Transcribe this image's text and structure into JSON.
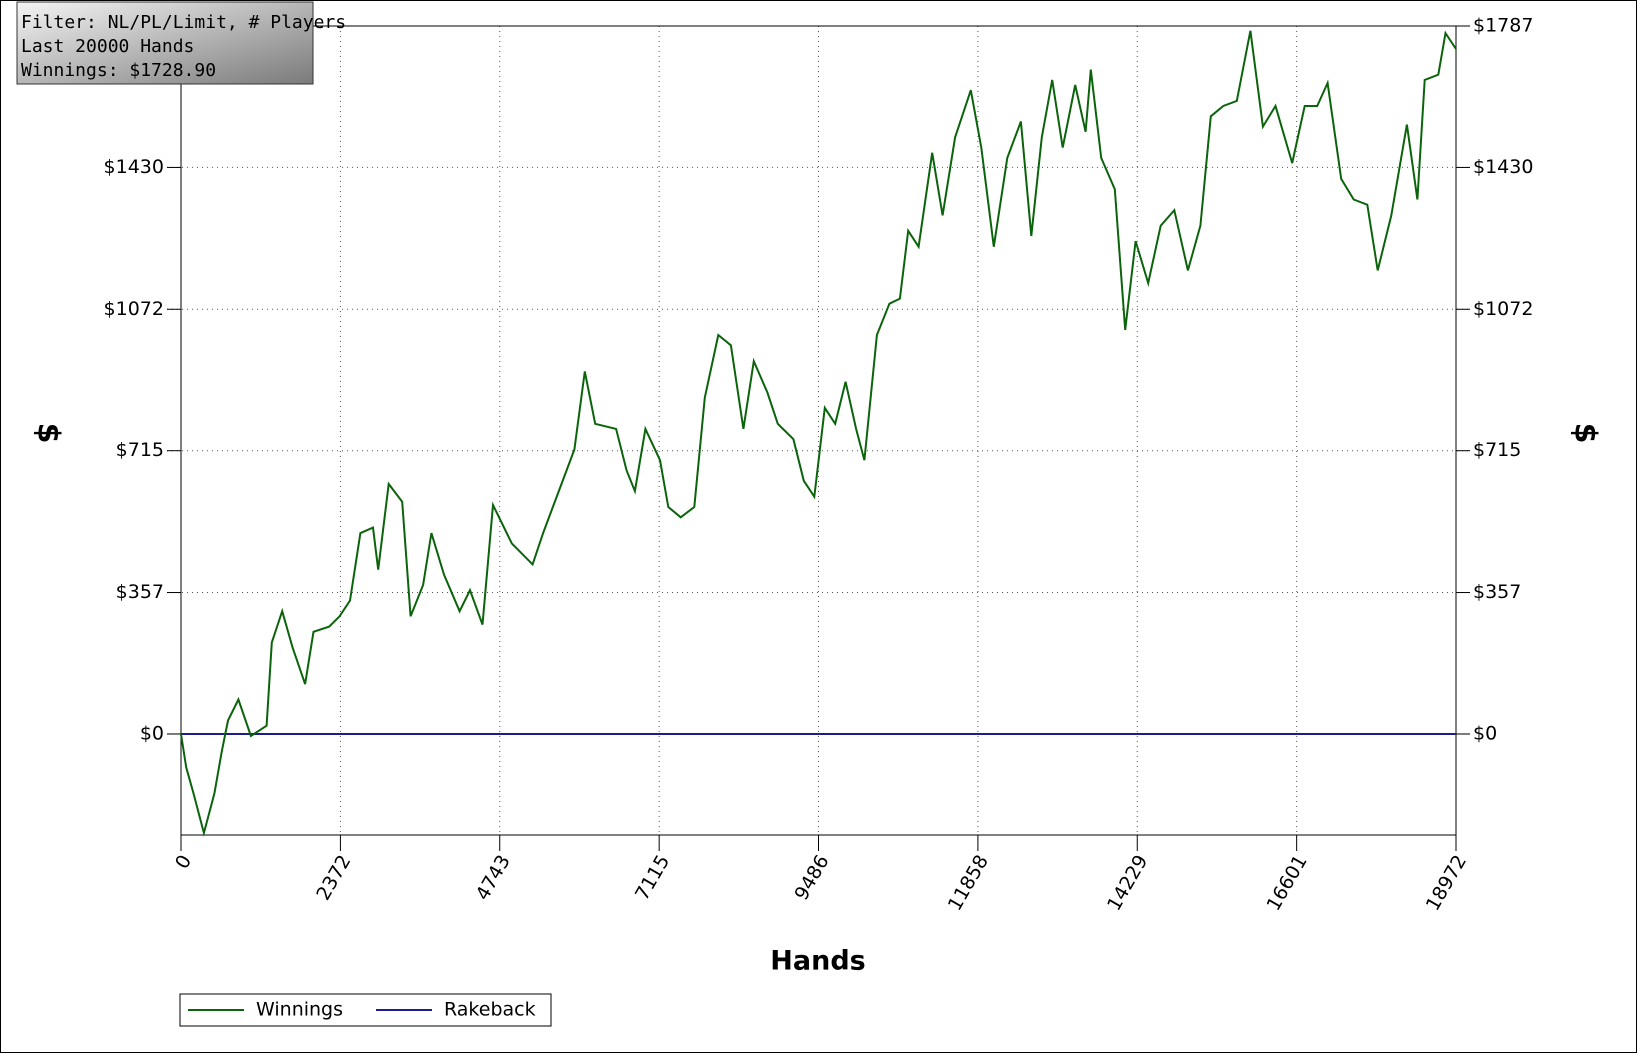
{
  "info_box": {
    "lines": [
      "Filter: NL/PL/Limit, # Players",
      "Last 20000 Hands",
      "Winnings: $1728.90"
    ]
  },
  "chart_data": {
    "type": "line",
    "xlabel": "Hands",
    "ylabel": "$",
    "xlim": [
      0,
      18972
    ],
    "xticks": [
      0,
      2372,
      4743,
      7115,
      9486,
      11858,
      14229,
      16601,
      18972
    ],
    "ylim": [
      -255,
      1787
    ],
    "yticks": [
      {
        "value": 0,
        "label": "$0"
      },
      {
        "value": 357,
        "label": "$357"
      },
      {
        "value": 715,
        "label": "$715"
      },
      {
        "value": 1072,
        "label": "$1072"
      },
      {
        "value": 1430,
        "label": "$1430"
      },
      {
        "value": 1787,
        "label": "$1787"
      }
    ],
    "grid": true,
    "legend": "bottom-left",
    "series": [
      {
        "name": "Winnings",
        "color": "#0b640b",
        "x": [
          0,
          78,
          186,
          341,
          497,
          605,
          699,
          854,
          1040,
          1273,
          1351,
          1506,
          1661,
          1847,
          1972,
          2205,
          2360,
          2515,
          2670,
          2857,
          2934,
          3090,
          3291,
          3416,
          3602,
          3726,
          3913,
          4146,
          4301,
          4487,
          4643,
          4922,
          5232,
          5388,
          5621,
          5854,
          6009,
          6164,
          6475,
          6630,
          6754,
          6910,
          7127,
          7251,
          7436,
          7638,
          7794,
          7995,
          8182,
          8368,
          8523,
          8725,
          8880,
          9113,
          9268,
          9424,
          9579,
          9734,
          9889,
          10045,
          10169,
          10355,
          10541,
          10697,
          10821,
          10976,
          11178,
          11333,
          11519,
          11752,
          11908,
          12094,
          12296,
          12498,
          12653,
          12808,
          12963,
          13119,
          13305,
          13460,
          13538,
          13693,
          13895,
          14050,
          14205,
          14392,
          14578,
          14780,
          14982,
          15168,
          15323,
          15509,
          15711,
          15913,
          16099,
          16286,
          16534,
          16720,
          16907,
          17062,
          17264,
          17450,
          17652,
          17807,
          18009,
          18242,
          18397,
          18506,
          18708,
          18816,
          18972
        ],
        "values": [
          0,
          -84,
          -150,
          -250,
          -150,
          -45,
          34,
          87,
          -5,
          21,
          231,
          310,
          218,
          126,
          258,
          271,
          297,
          337,
          507,
          521,
          415,
          631,
          586,
          297,
          376,
          507,
          402,
          310,
          363,
          276,
          578,
          481,
          428,
          507,
          613,
          718,
          915,
          783,
          770,
          665,
          613,
          770,
          691,
          573,
          547,
          573,
          849,
          1007,
          981,
          770,
          941,
          862,
          783,
          744,
          639,
          599,
          823,
          783,
          889,
          770,
          691,
          1007,
          1086,
          1099,
          1270,
          1230,
          1467,
          1309,
          1506,
          1625,
          1480,
          1230,
          1454,
          1546,
          1257,
          1506,
          1651,
          1480,
          1638,
          1520,
          1677,
          1454,
          1375,
          1020,
          1244,
          1138,
          1283,
          1322,
          1170,
          1283,
          1559,
          1585,
          1598,
          1775,
          1533,
          1585,
          1441,
          1585,
          1585,
          1643,
          1401,
          1349,
          1336,
          1170,
          1309,
          1538,
          1349,
          1651,
          1664,
          1769,
          1728.9
        ]
      },
      {
        "name": "Rakeback",
        "color": "#1c1c8c",
        "x": [
          0,
          18972
        ],
        "values": [
          0,
          0
        ]
      }
    ]
  }
}
